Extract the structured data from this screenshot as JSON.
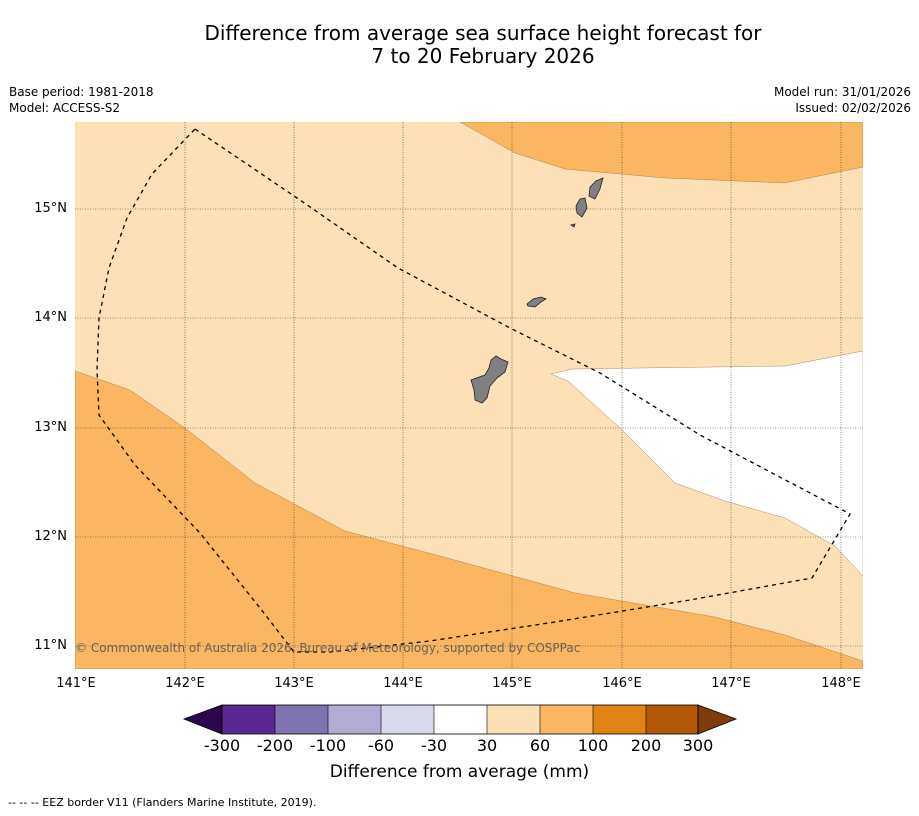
{
  "title_line1": "Difference from average sea surface height forecast for",
  "title_line2": "7 to 20 February 2026",
  "meta": {
    "base_period": "Base period: 1981-2018",
    "model": "Model: ACCESS-S2",
    "model_run": "Model run: 31/01/2026",
    "issued": "Issued: 02/02/2026"
  },
  "map": {
    "lon_range": [
      141.0,
      148.2
    ],
    "lat_range": [
      10.8,
      15.8
    ],
    "lon_ticks": [
      "141°E",
      "142°E",
      "143°E",
      "144°E",
      "145°E",
      "146°E",
      "147°E",
      "148°E"
    ],
    "lat_ticks": [
      "15°N",
      "14°N",
      "13°N",
      "12°N",
      "11°N"
    ],
    "copyright": "© Commonwealth of Australia 2026, Bureau of Meteorology, supported by COSPPac",
    "eez_border_note": "-- -- -- EEZ border V11 (Flanders Marine Institute, 2019).",
    "colors": {
      "30_60": "#fde0b6",
      "60_100": "#fab660",
      "-30_30": "#ffffff",
      "land": "#808080"
    }
  },
  "colorbar": {
    "title": "Difference from average (mm)",
    "tick_labels": [
      "-300",
      "-200",
      "-100",
      "-60",
      "-30",
      "30",
      "60",
      "100",
      "200",
      "300"
    ],
    "colors": [
      "#2d0650",
      "#5a2790",
      "#8073b2",
      "#b2abd3",
      "#d9d9ec",
      "#ffffff",
      "#fde0b6",
      "#fab660",
      "#e08214",
      "#b35806",
      "#7f3b08"
    ]
  }
}
